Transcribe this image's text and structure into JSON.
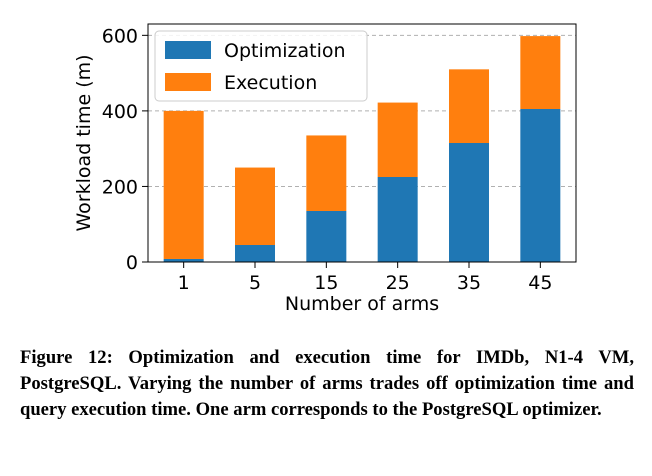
{
  "chart_data": {
    "type": "bar",
    "stacked": true,
    "categories": [
      "1",
      "5",
      "15",
      "25",
      "35",
      "45"
    ],
    "series": [
      {
        "name": "Optimization",
        "color": "#1f77b4",
        "values": [
          8,
          45,
          135,
          225,
          315,
          405
        ]
      },
      {
        "name": "Execution",
        "color": "#ff7f0e",
        "values": [
          392,
          205,
          200,
          197,
          195,
          193
        ]
      }
    ],
    "xlabel": "Number of arms",
    "ylabel": "Workload time (m)",
    "ylim": [
      0,
      630
    ],
    "yticks": [
      "0",
      "200",
      "400",
      "600"
    ],
    "grid": "horizontal dashed",
    "legend_position": "top-left"
  },
  "caption": "Figure 12: Optimization and execution time for IMDb, N1-4 VM, PostgreSQL. Varying the number of arms trades off optimization time and query execution time. One arm corresponds to the PostgreSQL optimizer."
}
